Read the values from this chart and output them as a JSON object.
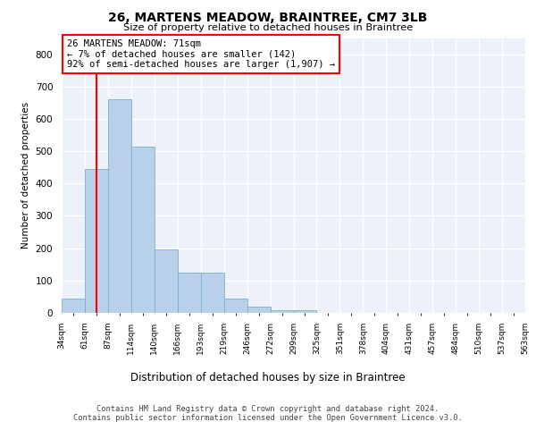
{
  "title1": "26, MARTENS MEADOW, BRAINTREE, CM7 3LB",
  "title2": "Size of property relative to detached houses in Braintree",
  "xlabel": "Distribution of detached houses by size in Braintree",
  "ylabel": "Number of detached properties",
  "bar_values": [
    45,
    445,
    660,
    515,
    195,
    125,
    125,
    45,
    20,
    8,
    8,
    0,
    0,
    0,
    0,
    0,
    0,
    0,
    0,
    0
  ],
  "categories": [
    "34sqm",
    "61sqm",
    "87sqm",
    "114sqm",
    "140sqm",
    "166sqm",
    "193sqm",
    "219sqm",
    "246sqm",
    "272sqm",
    "299sqm",
    "325sqm",
    "351sqm",
    "378sqm",
    "404sqm",
    "431sqm",
    "457sqm",
    "484sqm",
    "510sqm",
    "537sqm",
    "563sqm"
  ],
  "bar_color": "#b8d0ea",
  "bar_edge_color": "#7aafd4",
  "annotation_text": "26 MARTENS MEADOW: 71sqm\n← 7% of detached houses are smaller (142)\n92% of semi-detached houses are larger (1,907) →",
  "vline_x": 1.0,
  "ylim": [
    0,
    850
  ],
  "yticks": [
    0,
    100,
    200,
    300,
    400,
    500,
    600,
    700,
    800
  ],
  "footer": "Contains HM Land Registry data © Crown copyright and database right 2024.\nContains public sector information licensed under the Open Government Licence v3.0.",
  "bg_color": "#edf2fa",
  "grid_color": "#ffffff"
}
